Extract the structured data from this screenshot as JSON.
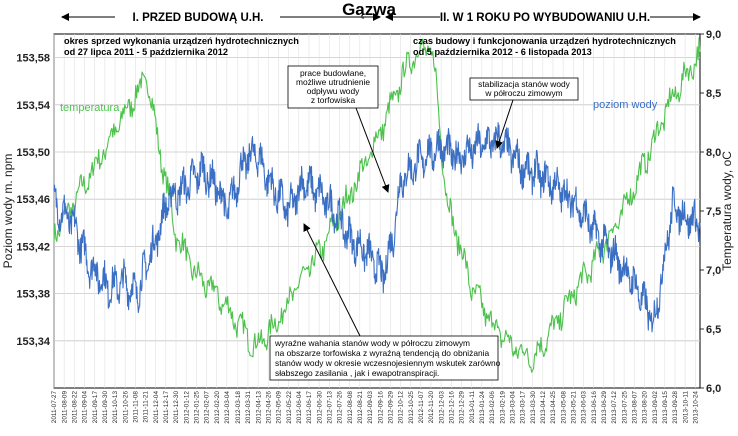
{
  "chart_data": {
    "type": "line",
    "title": "Gązwa",
    "ylabel": "Poziom wody m. npm",
    "y2label": "Temperatura wody, oC",
    "ylim": [
      153.3,
      153.6
    ],
    "y_ticks": [
      "153,34",
      "153,38",
      "153,42",
      "153,46",
      "153,50",
      "153,54",
      "153,58"
    ],
    "y_tick_values": [
      153.34,
      153.38,
      153.42,
      153.46,
      153.5,
      153.54,
      153.58
    ],
    "y2lim": [
      6.0,
      9.0
    ],
    "y2_ticks": [
      "6,0",
      "6,5",
      "7,0",
      "7,5",
      "8,0",
      "8,5",
      "9,0"
    ],
    "y2_tick_values": [
      6.0,
      6.5,
      7.0,
      7.5,
      8.0,
      8.5,
      9.0
    ],
    "x_ticks": [
      "2011-07-27",
      "2011-08-09",
      "2011-08-22",
      "2011-09-04",
      "2011-09-17",
      "2011-09-30",
      "2011-10-13",
      "2011-10-26",
      "2011-11-08",
      "2011-11-21",
      "2011-12-04",
      "2011-12-17",
      "2011-12-30",
      "2012-01-12",
      "2012-01-25",
      "2012-02-07",
      "2012-02-20",
      "2012-03-04",
      "2012-03-18",
      "2012-03-31",
      "2012-04-13",
      "2012-04-26",
      "2012-05-09",
      "2012-05-22",
      "2012-06-04",
      "2012-06-17",
      "2012-06-30",
      "2012-07-13",
      "2012-07-26",
      "2012-08-08",
      "2012-08-21",
      "2012-09-03",
      "2012-09-16",
      "2012-09-29",
      "2012-10-12",
      "2012-10-25",
      "2012-11-07",
      "2012-11-20",
      "2012-12-03",
      "2012-12-16",
      "2012-12-29",
      "2013-01-11",
      "2013-01-24",
      "2013-02-06",
      "2013-02-19",
      "2013-03-04",
      "2013-03-17",
      "2013-03-30",
      "2013-04-12",
      "2013-04-25",
      "2013-05-08",
      "2013-05-21",
      "2013-06-03",
      "2013-06-16",
      "2013-06-29",
      "2013-07-12",
      "2013-07-25",
      "2013-08-07",
      "2013-08-20",
      "2013-09-02",
      "2013-09-15",
      "2013-09-28",
      "2013-10-11",
      "2013-10-24"
    ],
    "grid": true,
    "series": [
      {
        "name": "poziom wody",
        "axis": "left",
        "color": "#3a6fc4",
        "x": [
          "2011-07-27",
          "2011-08-20",
          "2011-09-10",
          "2011-10-05",
          "2011-10-25",
          "2011-11-10",
          "2011-11-20",
          "2011-12-04",
          "2011-12-20",
          "2012-01-10",
          "2012-02-01",
          "2012-02-20",
          "2012-03-05",
          "2012-03-25",
          "2012-04-10",
          "2012-05-01",
          "2012-05-22",
          "2012-06-10",
          "2012-06-30",
          "2012-07-20",
          "2012-08-10",
          "2012-08-30",
          "2012-09-20",
          "2012-10-03",
          "2012-10-12",
          "2012-11-01",
          "2012-12-01",
          "2012-12-25",
          "2013-01-20",
          "2013-02-15",
          "2013-03-01",
          "2013-03-20",
          "2013-04-10",
          "2013-05-01",
          "2013-05-25",
          "2013-06-20",
          "2013-07-15",
          "2013-08-10",
          "2013-09-01",
          "2013-09-10",
          "2013-09-25",
          "2013-10-10",
          "2013-10-30"
        ],
        "values": [
          153.455,
          153.44,
          153.405,
          153.385,
          153.39,
          153.38,
          153.4,
          153.425,
          153.46,
          153.47,
          153.485,
          153.47,
          153.45,
          153.49,
          153.5,
          153.47,
          153.45,
          153.475,
          153.465,
          153.45,
          153.425,
          153.415,
          153.395,
          153.43,
          153.475,
          153.49,
          153.505,
          153.495,
          153.505,
          153.51,
          153.5,
          153.485,
          153.48,
          153.47,
          153.455,
          153.43,
          153.41,
          153.385,
          153.355,
          153.39,
          153.455,
          153.445,
          153.44
        ],
        "label": "poziom wody"
      },
      {
        "name": "temperatura",
        "axis": "right",
        "color": "#4cc24c",
        "x": [
          "2011-07-27",
          "2011-08-20",
          "2011-09-15",
          "2011-10-15",
          "2011-11-05",
          "2011-11-20",
          "2011-11-25",
          "2011-12-04",
          "2011-12-30",
          "2012-01-25",
          "2012-02-20",
          "2012-03-18",
          "2012-04-10",
          "2012-05-01",
          "2012-06-01",
          "2012-07-01",
          "2012-08-01",
          "2012-09-01",
          "2012-10-01",
          "2012-10-25",
          "2012-11-15",
          "2012-11-25",
          "2012-12-10",
          "2013-01-11",
          "2013-02-06",
          "2013-03-04",
          "2013-03-30",
          "2013-04-25",
          "2013-05-21",
          "2013-06-20",
          "2013-07-20",
          "2013-08-20",
          "2013-09-20",
          "2013-10-30"
        ],
        "values": [
          7.3,
          7.55,
          7.85,
          8.2,
          8.45,
          8.6,
          8.6,
          8.2,
          7.3,
          6.95,
          6.8,
          6.55,
          6.35,
          6.5,
          6.85,
          7.15,
          7.55,
          7.95,
          8.4,
          8.8,
          8.9,
          8.7,
          7.6,
          6.85,
          6.55,
          6.35,
          6.25,
          6.5,
          6.8,
          7.1,
          7.45,
          7.9,
          8.4,
          8.85
        ],
        "label": "temperatura"
      }
    ],
    "periods": [
      {
        "title": "I. PRZED BUDOWĄ U.H.",
        "subtitle_1": "okres sprzed wykonania urządzeń hydrotechnicznych",
        "subtitle_2": "od 27 lipca 2011 - 5 października 2012"
      },
      {
        "title": "II. W 1 ROKU PO WYBUDOWANIU U.H.",
        "subtitle_1": "czas budowy i  funkcjonowania urządzeń hydrotechnicznych",
        "subtitle_2": "od 5 października 2012 - 6 listopada 2013"
      }
    ],
    "annotations": [
      {
        "lines": [
          "prace budowlane,",
          "możliwe utrudnienie",
          "odpływu wody",
          "z torfowiska"
        ]
      },
      {
        "lines": [
          "stabilizacja stanów wody",
          "w półroczu zimowym"
        ]
      },
      {
        "lines": [
          "wyraźne wahania stanów wody w półroczu zimowym",
          "na obszarze torfowiska z wyraźną tendencją do  obniżania",
          "stanów wody w okresie wczesnojesiennym wskutek zarówno",
          "słabszego zasilania , jak i  ewapotranspiracji."
        ]
      }
    ]
  }
}
